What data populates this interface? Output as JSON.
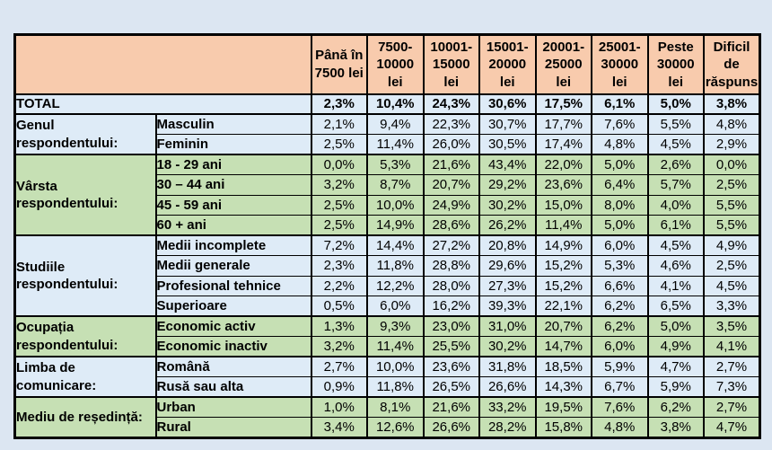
{
  "page": {
    "background_color": "#DCE6F2"
  },
  "chart_data": {
    "type": "table",
    "corner_label": "",
    "columns": [
      "Până în\n7500  lei",
      "7500-\n10000\nlei",
      "10001-\n15000\nlei",
      "15001-\n20000\nlei",
      "20001-\n25000\nlei",
      "25001-\n30000\nlei",
      "Peste\n30000\nlei",
      "Dificil\nde\nrăspuns"
    ],
    "total_row": {
      "label": "TOTAL",
      "values": [
        "2,3%",
        "10,4%",
        "24,3%",
        "30,6%",
        "17,5%",
        "6,1%",
        "5,0%",
        "3,8%"
      ]
    },
    "row_groups": [
      {
        "category": "Genul respondentului:",
        "tint": "blue",
        "rows": [
          {
            "label": "Masculin",
            "values": [
              "2,1%",
              "9,4%",
              "22,3%",
              "30,7%",
              "17,7%",
              "7,6%",
              "5,5%",
              "4,8%"
            ]
          },
          {
            "label": "Feminin",
            "values": [
              "2,5%",
              "11,4%",
              "26,0%",
              "30,5%",
              "17,4%",
              "4,8%",
              "4,5%",
              "2,9%"
            ]
          }
        ]
      },
      {
        "category": "Vârsta respondentului:",
        "tint": "green",
        "rows": [
          {
            "label": "18 - 29 ani",
            "values": [
              "0,0%",
              "5,3%",
              "21,6%",
              "43,4%",
              "22,0%",
              "5,0%",
              "2,6%",
              "0,0%"
            ]
          },
          {
            "label": "30 – 44 ani",
            "values": [
              "3,2%",
              "8,7%",
              "20,7%",
              "29,2%",
              "23,6%",
              "6,4%",
              "5,7%",
              "2,5%"
            ]
          },
          {
            "label": "45 - 59 ani",
            "values": [
              "2,5%",
              "10,0%",
              "24,9%",
              "30,2%",
              "15,0%",
              "8,0%",
              "4,0%",
              "5,5%"
            ]
          },
          {
            "label": "60 + ani",
            "values": [
              "2,5%",
              "14,9%",
              "28,6%",
              "26,2%",
              "11,4%",
              "5,0%",
              "6,1%",
              "5,5%"
            ]
          }
        ]
      },
      {
        "category": "Studiile respondentului:",
        "tint": "blue",
        "rows": [
          {
            "label": "Medii incomplete",
            "values": [
              "7,2%",
              "14,4%",
              "27,2%",
              "20,8%",
              "14,9%",
              "6,0%",
              "4,5%",
              "4,9%"
            ]
          },
          {
            "label": "Medii generale",
            "values": [
              "2,3%",
              "11,8%",
              "28,8%",
              "29,6%",
              "15,2%",
              "5,3%",
              "4,6%",
              "2,5%"
            ]
          },
          {
            "label": "Profesional tehnice",
            "values": [
              "2,2%",
              "12,2%",
              "28,0%",
              "27,3%",
              "15,2%",
              "6,6%",
              "4,1%",
              "4,5%"
            ]
          },
          {
            "label": "Superioare",
            "values": [
              "0,5%",
              "6,0%",
              "16,2%",
              "39,3%",
              "22,1%",
              "6,2%",
              "6,5%",
              "3,3%"
            ]
          }
        ]
      },
      {
        "category": "Ocupația respondentului:",
        "tint": "green",
        "rows": [
          {
            "label": "Economic activ",
            "values": [
              "1,3%",
              "9,3%",
              "23,0%",
              "31,0%",
              "20,7%",
              "6,2%",
              "5,0%",
              "3,5%"
            ]
          },
          {
            "label": "Economic inactiv",
            "values": [
              "3,2%",
              "11,4%",
              "25,5%",
              "30,2%",
              "14,7%",
              "6,0%",
              "4,9%",
              "4,1%"
            ]
          }
        ]
      },
      {
        "category": "Limba de comunicare:",
        "tint": "blue",
        "rows": [
          {
            "label": "Română",
            "values": [
              "2,7%",
              "10,0%",
              "23,6%",
              "31,8%",
              "18,5%",
              "5,9%",
              "4,7%",
              "2,7%"
            ]
          },
          {
            "label": "Rusă sau alta",
            "values": [
              "0,9%",
              "11,8%",
              "26,5%",
              "26,6%",
              "14,3%",
              "6,7%",
              "5,9%",
              "7,3%"
            ]
          }
        ]
      },
      {
        "category": "Mediu de reședință:",
        "tint": "green",
        "rows": [
          {
            "label": "Urban",
            "values": [
              "1,0%",
              "8,1%",
              "21,6%",
              "33,2%",
              "19,5%",
              "7,6%",
              "6,2%",
              "2,7%"
            ]
          },
          {
            "label": "Rural",
            "values": [
              "3,4%",
              "12,6%",
              "26,6%",
              "28,2%",
              "15,8%",
              "4,8%",
              "3,8%",
              "4,7%"
            ]
          }
        ]
      }
    ],
    "colors": {
      "header_bg": "#F8CBAD",
      "blue_row_bg": "#DEEBF7",
      "green_row_bg": "#C6E0B4",
      "total_row_bg": "#DEEBF7",
      "border": "#000000"
    },
    "layout": {
      "category_col_width": 157,
      "label_col_width": 173,
      "data_col_width": 62.5
    }
  }
}
